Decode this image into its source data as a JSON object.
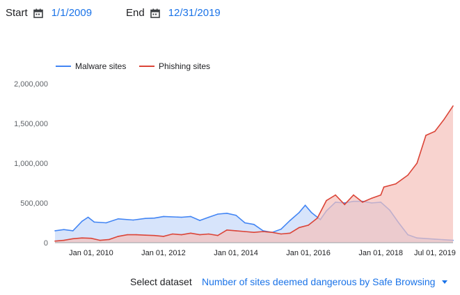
{
  "filters": {
    "start_label": "Start",
    "start_value": "1/1/2009",
    "end_label": "End",
    "end_value": "12/31/2019",
    "calendar_icon": "calendar-icon"
  },
  "dataset": {
    "label": "Select dataset",
    "value": "Number of sites deemed dangerous by Safe Browsing",
    "dropdown_icon": "caret-down-icon"
  },
  "chart_data": {
    "type": "area",
    "title": "",
    "xlabel": "",
    "ylabel": "",
    "legend_position": "top-left",
    "grid": false,
    "xlim": [
      "2009-01-01",
      "2019-12-31"
    ],
    "ylim": [
      0,
      2000000
    ],
    "y_ticks": [
      0,
      500000,
      1000000,
      1500000,
      2000000
    ],
    "y_tick_labels": [
      "0",
      "500,000",
      "1,000,000",
      "1,500,000",
      "2,000,000"
    ],
    "x_ticks": [
      "2010-01-01",
      "2012-01-01",
      "2014-01-01",
      "2016-01-01",
      "2018-01-01",
      "2019-07-01"
    ],
    "x_tick_labels": [
      "Jan 01, 2010",
      "Jan 01, 2012",
      "Jan 01, 2014",
      "Jan 01, 2016",
      "Jan 01, 2018",
      "Jul 01, 2019"
    ],
    "series": [
      {
        "name": "Malware sites",
        "color": "#4285f4",
        "fill": "#c6d9f9",
        "points": [
          [
            "2009-01-01",
            150000
          ],
          [
            "2009-04-01",
            165000
          ],
          [
            "2009-07-01",
            150000
          ],
          [
            "2009-10-01",
            270000
          ],
          [
            "2009-12-01",
            320000
          ],
          [
            "2010-02-01",
            260000
          ],
          [
            "2010-06-01",
            250000
          ],
          [
            "2010-10-01",
            300000
          ],
          [
            "2011-03-01",
            285000
          ],
          [
            "2011-07-01",
            305000
          ],
          [
            "2011-10-01",
            310000
          ],
          [
            "2012-01-01",
            330000
          ],
          [
            "2012-07-01",
            320000
          ],
          [
            "2012-10-01",
            330000
          ],
          [
            "2013-01-01",
            280000
          ],
          [
            "2013-04-01",
            320000
          ],
          [
            "2013-07-01",
            360000
          ],
          [
            "2013-10-01",
            370000
          ],
          [
            "2014-01-01",
            345000
          ],
          [
            "2014-04-01",
            250000
          ],
          [
            "2014-07-01",
            230000
          ],
          [
            "2014-10-01",
            150000
          ],
          [
            "2015-01-01",
            130000
          ],
          [
            "2015-04-01",
            170000
          ],
          [
            "2015-07-01",
            280000
          ],
          [
            "2015-10-01",
            380000
          ],
          [
            "2015-12-01",
            470000
          ],
          [
            "2016-02-01",
            380000
          ],
          [
            "2016-05-01",
            290000
          ],
          [
            "2016-07-01",
            400000
          ],
          [
            "2016-10-01",
            510000
          ],
          [
            "2017-01-01",
            500000
          ],
          [
            "2017-04-01",
            520000
          ],
          [
            "2017-07-01",
            520000
          ],
          [
            "2017-10-01",
            500000
          ],
          [
            "2018-01-01",
            510000
          ],
          [
            "2018-04-01",
            410000
          ],
          [
            "2018-07-01",
            250000
          ],
          [
            "2018-10-01",
            100000
          ],
          [
            "2019-01-01",
            60000
          ],
          [
            "2019-07-01",
            45000
          ],
          [
            "2019-12-31",
            30000
          ]
        ]
      },
      {
        "name": "Phishing sites",
        "color": "#db4437",
        "fill": "#f5c0bb",
        "points": [
          [
            "2009-01-01",
            20000
          ],
          [
            "2009-04-01",
            30000
          ],
          [
            "2009-07-01",
            50000
          ],
          [
            "2009-10-01",
            60000
          ],
          [
            "2010-01-01",
            55000
          ],
          [
            "2010-04-01",
            30000
          ],
          [
            "2010-07-01",
            40000
          ],
          [
            "2010-10-01",
            80000
          ],
          [
            "2011-01-01",
            100000
          ],
          [
            "2011-04-01",
            100000
          ],
          [
            "2011-07-01",
            95000
          ],
          [
            "2011-10-01",
            90000
          ],
          [
            "2012-01-01",
            80000
          ],
          [
            "2012-04-01",
            110000
          ],
          [
            "2012-07-01",
            100000
          ],
          [
            "2012-10-01",
            120000
          ],
          [
            "2013-01-01",
            100000
          ],
          [
            "2013-04-01",
            110000
          ],
          [
            "2013-07-01",
            90000
          ],
          [
            "2013-10-01",
            160000
          ],
          [
            "2014-01-01",
            150000
          ],
          [
            "2014-04-01",
            140000
          ],
          [
            "2014-07-01",
            130000
          ],
          [
            "2014-10-01",
            140000
          ],
          [
            "2015-01-01",
            130000
          ],
          [
            "2015-04-01",
            110000
          ],
          [
            "2015-07-01",
            120000
          ],
          [
            "2015-10-01",
            190000
          ],
          [
            "2016-01-01",
            220000
          ],
          [
            "2016-04-01",
            310000
          ],
          [
            "2016-07-01",
            530000
          ],
          [
            "2016-10-01",
            600000
          ],
          [
            "2017-01-01",
            480000
          ],
          [
            "2017-04-01",
            600000
          ],
          [
            "2017-07-01",
            510000
          ],
          [
            "2017-10-01",
            560000
          ],
          [
            "2018-01-01",
            600000
          ],
          [
            "2018-02-01",
            700000
          ],
          [
            "2018-06-01",
            740000
          ],
          [
            "2018-10-01",
            850000
          ],
          [
            "2019-01-01",
            1000000
          ],
          [
            "2019-04-01",
            1350000
          ],
          [
            "2019-07-01",
            1400000
          ],
          [
            "2019-10-01",
            1550000
          ],
          [
            "2019-12-31",
            1720000
          ]
        ]
      }
    ]
  }
}
